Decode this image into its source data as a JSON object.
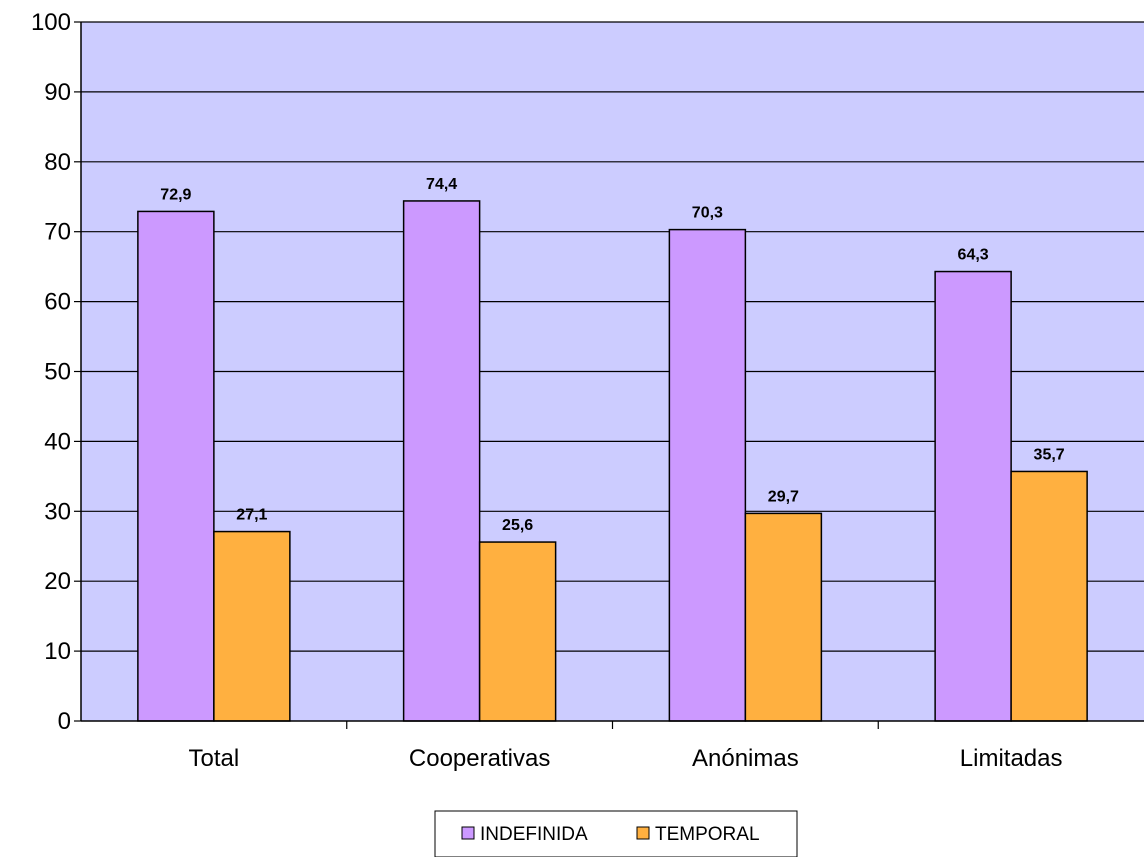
{
  "chart_data": {
    "type": "bar",
    "categories": [
      "Total",
      "Cooperativas",
      "Anónimas",
      "Limitadas"
    ],
    "series": [
      {
        "name": "INDEFINIDA",
        "values": [
          72.9,
          74.4,
          70.3,
          64.3
        ],
        "labels": [
          "72,9",
          "74,4",
          "70,3",
          "64,3"
        ],
        "color": "#cc99ff"
      },
      {
        "name": "TEMPORAL",
        "values": [
          27.1,
          25.6,
          29.7,
          35.7
        ],
        "labels": [
          "27,1",
          "25,6",
          "29,7",
          "35,7"
        ],
        "color": "#ffb040"
      }
    ],
    "ylim": [
      0,
      100
    ],
    "yticks": [
      0,
      10,
      20,
      30,
      40,
      50,
      60,
      70,
      80,
      90,
      100
    ],
    "grid": true,
    "legend": "bottom",
    "plot_background": "#ccccff",
    "title": "",
    "xlabel": "",
    "ylabel": ""
  }
}
